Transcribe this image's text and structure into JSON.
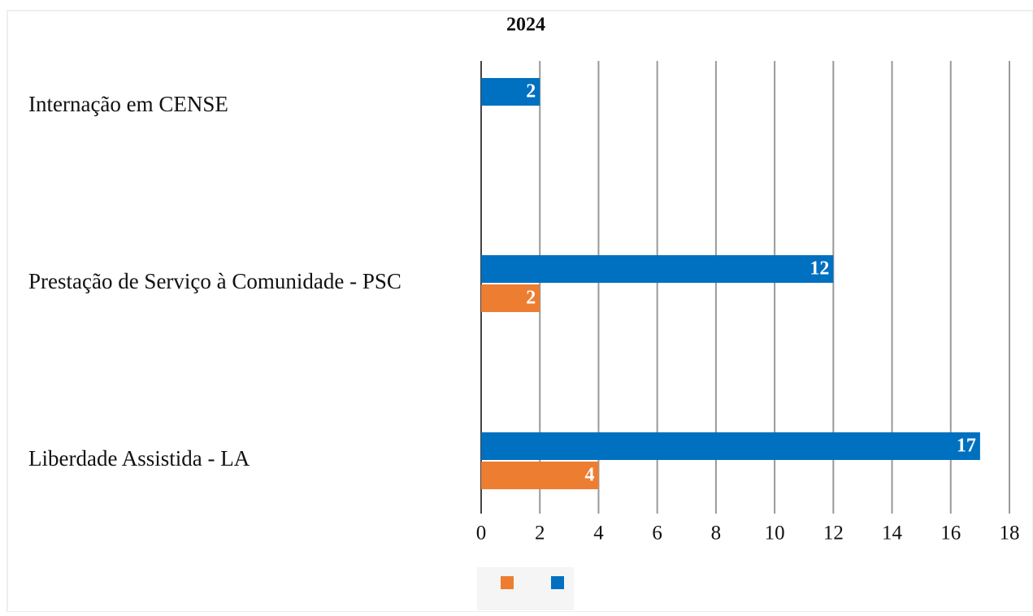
{
  "chart_data": {
    "type": "bar",
    "orientation": "horizontal",
    "title": "2024",
    "categories": [
      "Internação em CENSE",
      "Prestação de Serviço à Comunidade - PSC",
      "Liberdade Assistida - LA"
    ],
    "series": [
      {
        "color": "#0070c0",
        "values": [
          2,
          12,
          17
        ]
      },
      {
        "color": "#ed7d31",
        "values": [
          null,
          2,
          4
        ]
      }
    ],
    "xlim": [
      0,
      18
    ],
    "xticks": [
      0,
      2,
      4,
      6,
      8,
      10,
      12,
      14,
      16,
      18
    ],
    "grid": true
  }
}
